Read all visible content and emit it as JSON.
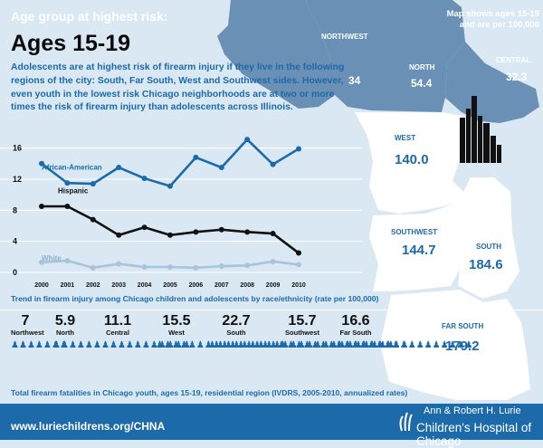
{
  "header": {
    "kicker": "Age group at highest risk:",
    "title": "Ages 15-19",
    "intro": "Adolescents are at highest risk of firearm injury if they live in the following regions of the city: South, Far South, West and Southwest sides.  However, even youth in the lowest risk Chicago neighborhoods are at two or more times the risk of firearm injury than adolescents across Illinois."
  },
  "map": {
    "note": "Map shows ages 15-19 and are per 100,000",
    "regions": [
      {
        "name": "NORTHWEST",
        "value": "34"
      },
      {
        "name": "NORTH",
        "value": "54.4"
      },
      {
        "name": "CENTRAL",
        "value": "32.3"
      },
      {
        "name": "WEST",
        "value": "140.0"
      },
      {
        "name": "SOUTHWEST",
        "value": "144.7"
      },
      {
        "name": "SOUTH",
        "value": "184.6"
      },
      {
        "name": "FAR SOUTH",
        "value": "179.2"
      }
    ]
  },
  "chart_data": {
    "type": "line",
    "title": "",
    "caption": "Trend in firearm injury among Chicago children and adolescents by race/ethnicity (rate per 100,000)",
    "x": [
      "2000",
      "2001",
      "2002",
      "2003",
      "2004",
      "2005",
      "2006",
      "2007",
      "2008",
      "2009",
      "2010"
    ],
    "yticks": [
      0,
      4,
      8,
      12,
      16
    ],
    "ylim": [
      0,
      17
    ],
    "grid": true,
    "series": [
      {
        "name": "African-American",
        "color": "#1c6aa9",
        "values": [
          14.0,
          11.5,
          11.4,
          13.5,
          12.1,
          11.1,
          14.8,
          13.5,
          17.1,
          13.9,
          15.9
        ]
      },
      {
        "name": "Hispanic",
        "color": "#111111",
        "values": [
          8.5,
          8.5,
          6.8,
          4.8,
          5.8,
          4.8,
          5.2,
          5.5,
          5.2,
          5.0,
          2.5
        ]
      },
      {
        "name": "White",
        "color": "#a8c4dc",
        "values": [
          1.3,
          1.5,
          0.6,
          1.1,
          0.7,
          0.7,
          0.6,
          0.8,
          0.9,
          1.4,
          1.0
        ]
      }
    ]
  },
  "fatalities": {
    "caption": "Total firearm fatalities in Chicago youth, ages 15-19, residential region (IVDRS, 2005-2010, annualized rates)",
    "regions": [
      {
        "name": "Northwest",
        "value": 7,
        "label": "7"
      },
      {
        "name": "North",
        "value": 5.9,
        "label": "5.9"
      },
      {
        "name": "Central",
        "value": 11.1,
        "label": "11.1"
      },
      {
        "name": "West",
        "value": 15.5,
        "label": "15.5"
      },
      {
        "name": "South",
        "value": 22.7,
        "label": "22.7"
      },
      {
        "name": "Southwest",
        "value": 15.7,
        "label": "15.7"
      },
      {
        "name": "Far South",
        "value": 16.6,
        "label": "16.6"
      }
    ]
  },
  "footer": {
    "url": "www.luriechildrens.org/CHNA",
    "logo_line1": "Ann & Robert H. Lurie",
    "logo_line2": "Children's Hospital of Chicago"
  },
  "colors": {
    "accent": "#1c6aa9",
    "background": "#d9e8f2",
    "map_dark": "#6b90b5",
    "map_light": "#ffffff"
  }
}
